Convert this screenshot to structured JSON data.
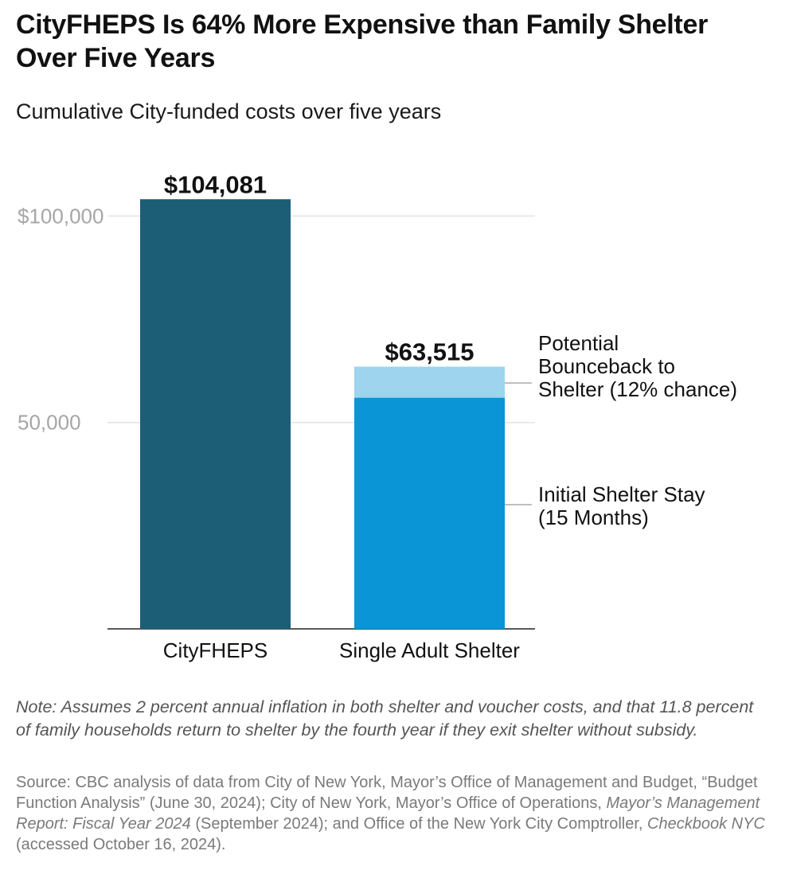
{
  "title": "CityFHEPS Is 64% More Expensive than Family Shelter Over Five Years",
  "subtitle": "Cumulative City-funded costs over five years",
  "chart_data": {
    "type": "bar",
    "stacked": true,
    "categories": [
      "CityFHEPS",
      "Single Adult Shelter"
    ],
    "series": [
      {
        "name": "CityFHEPS",
        "values": [
          104081,
          0
        ],
        "color": "#1b5e75"
      },
      {
        "name": "Initial Shelter Stay (15 Months)",
        "values": [
          0,
          56000
        ],
        "color": "#0995d6"
      },
      {
        "name": "Potential Bounceback to Shelter (12% chance)",
        "values": [
          0,
          7515
        ],
        "color": "#9ed4ee"
      }
    ],
    "totals": [
      104081,
      63515
    ],
    "total_labels": [
      "$104,081",
      "$63,515"
    ],
    "y_ticks": [
      {
        "value": 50000,
        "label": "50,000"
      },
      {
        "value": 100000,
        "label": "$100,000"
      }
    ],
    "ylim": [
      0,
      113000
    ],
    "grid": true,
    "segment_labels": [
      {
        "lines": [
          "Potential",
          "Bounceback to",
          "Shelter (12% chance)"
        ]
      },
      {
        "lines": [
          "Initial Shelter Stay",
          "(15 Months)"
        ]
      }
    ]
  },
  "note": "Note: Assumes 2 percent annual inflation in both shelter and voucher costs, and that 11.8 percent of family households return to shelter by the fourth year if they exit shelter without subsidy.",
  "source": {
    "prefix": "Source: CBC analysis of data from City of New York, Mayor’s Office of Management and Budget, “Budget Function Analysis” (June 30, 2024); City of New York, Mayor’s Office of Operations, ",
    "report_title": "Mayor’s Management Report: Fiscal Year 2024",
    "middle": " (September 2024); and Office of the New York City Comptroller, ",
    "site_title": "Checkbook NYC",
    "suffix": " (accessed October 16, 2024)."
  }
}
